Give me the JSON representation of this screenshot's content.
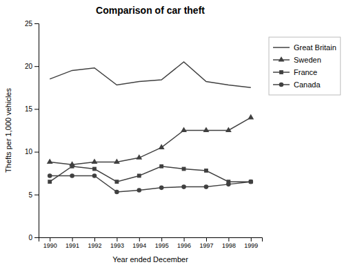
{
  "chart_data": {
    "type": "line",
    "title": "Comparison of car theft",
    "xlabel": "Year ended December",
    "ylabel": "Thefts per 1,000 vehicles",
    "x": [
      1990,
      1991,
      1992,
      1993,
      1994,
      1995,
      1996,
      1997,
      1998,
      1999
    ],
    "series": [
      {
        "name": "Great Britain",
        "color": "#404040",
        "marker": "none",
        "values": [
          18.5,
          19.5,
          19.8,
          17.8,
          18.2,
          18.4,
          20.5,
          18.2,
          17.8,
          17.5
        ]
      },
      {
        "name": "Sweden",
        "color": "#404040",
        "marker": "triangle",
        "values": [
          8.8,
          8.5,
          8.8,
          8.8,
          9.3,
          10.5,
          12.5,
          12.5,
          12.5,
          14.0
        ]
      },
      {
        "name": "France",
        "color": "#404040",
        "marker": "square",
        "values": [
          6.5,
          8.3,
          8.0,
          6.5,
          7.2,
          8.3,
          8.0,
          7.8,
          6.5,
          6.5
        ]
      },
      {
        "name": "Canada",
        "color": "#404040",
        "marker": "circle",
        "values": [
          7.2,
          7.2,
          7.2,
          5.3,
          5.5,
          5.8,
          5.9,
          5.9,
          6.2,
          6.5
        ]
      }
    ],
    "xlim": [
      1989.5,
      1999.5
    ],
    "xticks": [
      1990,
      1991,
      1992,
      1993,
      1994,
      1995,
      1996,
      1997,
      1998,
      1999
    ],
    "ylim": [
      0,
      25
    ],
    "yticks": [
      0,
      5,
      10,
      15,
      20,
      25
    ],
    "grid": false,
    "legend": "right"
  }
}
